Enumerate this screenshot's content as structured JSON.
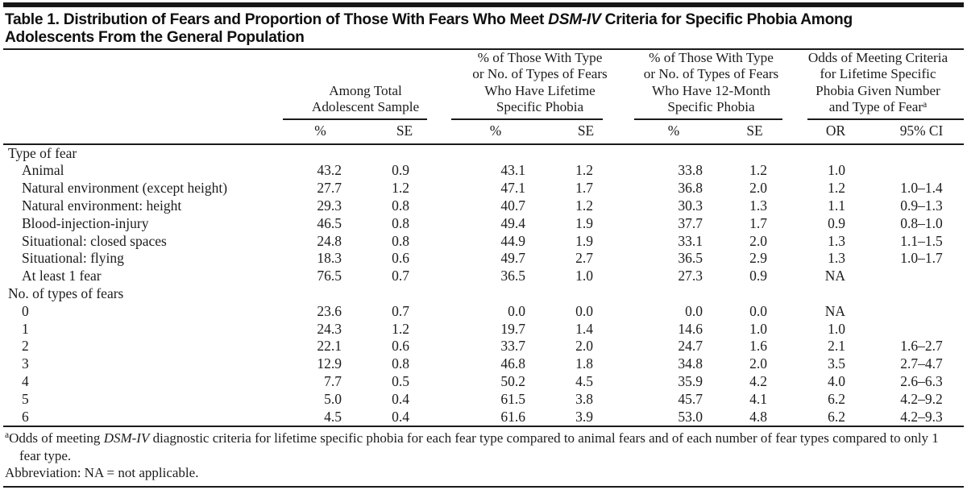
{
  "title_lines": [
    {
      "prefix": "Table 1. Distribution of Fears and Proportion of Those With Fears Who Meet ",
      "italic": "DSM-IV",
      "suffix": " Criteria for Specific Phobia Among"
    },
    {
      "prefix": "Adolescents From the General Population",
      "italic": "",
      "suffix": ""
    }
  ],
  "header": {
    "groups": [
      {
        "lines": [
          "Among Total",
          "Adolescent Sample"
        ],
        "sup": ""
      },
      {
        "lines": [
          "% of Those With Type",
          "or No. of Types of Fears",
          "Who Have Lifetime",
          "Specific Phobia"
        ],
        "sup": ""
      },
      {
        "lines": [
          "% of Those With Type",
          "or No. of Types of Fears",
          "Who Have 12-Month",
          "Specific Phobia"
        ],
        "sup": ""
      },
      {
        "lines": [
          "Odds of Meeting Criteria",
          "for Lifetime Specific",
          "Phobia Given Number",
          "and Type of Fear"
        ],
        "sup": "a"
      }
    ],
    "sub_headers": [
      "%",
      "SE",
      "%",
      "SE",
      "%",
      "SE",
      "OR",
      "95% CI"
    ]
  },
  "sections": [
    {
      "header": "Type of fear",
      "rows": [
        {
          "label": "Animal",
          "values": [
            "43.2",
            "0.9",
            "43.1",
            "1.2",
            "33.8",
            "1.2",
            "1.0",
            ""
          ]
        },
        {
          "label": "Natural environment (except height)",
          "values": [
            "27.7",
            "1.2",
            "47.1",
            "1.7",
            "36.8",
            "2.0",
            "1.2",
            "1.0–1.4"
          ]
        },
        {
          "label": "Natural environment: height",
          "values": [
            "29.3",
            "0.8",
            "40.7",
            "1.2",
            "30.3",
            "1.3",
            "1.1",
            "0.9–1.3"
          ]
        },
        {
          "label": "Blood-injection-injury",
          "values": [
            "46.5",
            "0.8",
            "49.4",
            "1.9",
            "37.7",
            "1.7",
            "0.9",
            "0.8–1.0"
          ]
        },
        {
          "label": "Situational: closed spaces",
          "values": [
            "24.8",
            "0.8",
            "44.9",
            "1.9",
            "33.1",
            "2.0",
            "1.3",
            "1.1–1.5"
          ]
        },
        {
          "label": "Situational: flying",
          "values": [
            "18.3",
            "0.6",
            "49.7",
            "2.7",
            "36.5",
            "2.9",
            "1.3",
            "1.0–1.7"
          ]
        },
        {
          "label": "At least 1 fear",
          "values": [
            "76.5",
            "0.7",
            "36.5",
            "1.0",
            "27.3",
            "0.9",
            "NA",
            ""
          ]
        }
      ]
    },
    {
      "header": "No. of types of fears",
      "rows": [
        {
          "label": "0",
          "values": [
            "23.6",
            "0.7",
            "0.0",
            "0.0",
            "0.0",
            "0.0",
            "NA",
            ""
          ]
        },
        {
          "label": "1",
          "values": [
            "24.3",
            "1.2",
            "19.7",
            "1.4",
            "14.6",
            "1.0",
            "1.0",
            ""
          ]
        },
        {
          "label": "2",
          "values": [
            "22.1",
            "0.6",
            "33.7",
            "2.0",
            "24.7",
            "1.6",
            "2.1",
            "1.6–2.7"
          ]
        },
        {
          "label": "3",
          "values": [
            "12.9",
            "0.8",
            "46.8",
            "1.8",
            "34.8",
            "2.0",
            "3.5",
            "2.7–4.7"
          ]
        },
        {
          "label": "4",
          "values": [
            "7.7",
            "0.5",
            "50.2",
            "4.5",
            "35.9",
            "4.2",
            "4.0",
            "2.6–6.3"
          ]
        },
        {
          "label": "5",
          "values": [
            "5.0",
            "0.4",
            "61.5",
            "3.8",
            "45.7",
            "4.1",
            "6.2",
            "4.2–9.2"
          ]
        },
        {
          "label": "6",
          "values": [
            "4.5",
            "0.4",
            "61.6",
            "3.9",
            "53.0",
            "4.8",
            "6.2",
            "4.2–9.3"
          ]
        }
      ]
    }
  ],
  "footnotes": {
    "a": {
      "marker": "a",
      "prefix": "Odds of meeting ",
      "italic": "DSM-IV",
      "suffix": " diagnostic criteria for lifetime specific phobia for each fear type compared to animal fears and of each number of fear types compared to only 1 fear type."
    },
    "abbreviation": "Abbreviation: NA = not applicable."
  },
  "colors": {
    "text": "#1c1c1c",
    "rule": "#1b1b1b",
    "background": "#ffffff"
  }
}
